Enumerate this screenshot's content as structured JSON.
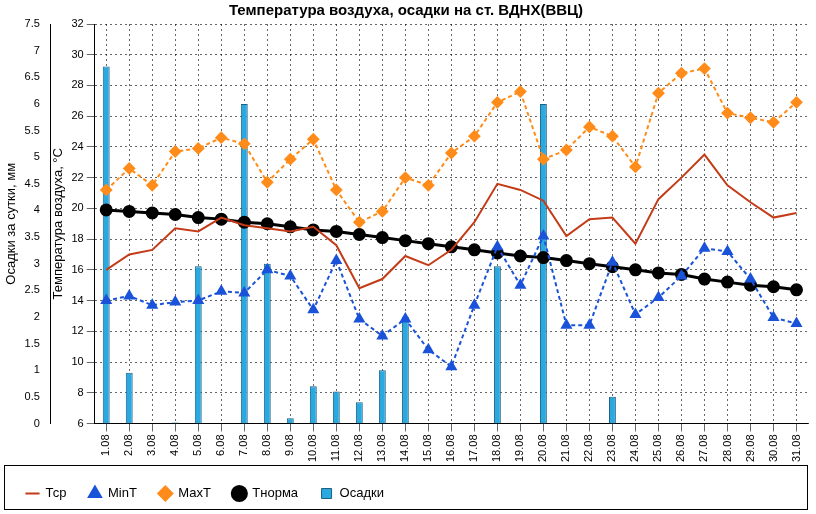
{
  "chart_data": {
    "type": "line",
    "title": "Температура воздуха, осадки на ст. ВДНХ(ВВЦ)",
    "y_label": "Температура воздуха, °C",
    "y2_label": "Осадки за сутки, мм",
    "categories": [
      "1.08",
      "2.08",
      "3.08",
      "4.08",
      "5.08",
      "6.08",
      "7.08",
      "8.08",
      "9.08",
      "10.08",
      "11.08",
      "12.08",
      "13.08",
      "14.08",
      "15.08",
      "16.08",
      "17.08",
      "18.08",
      "19.08",
      "20.08",
      "21.08",
      "22.08",
      "23.08",
      "24.08",
      "25.08",
      "26.08",
      "27.08",
      "28.08",
      "29.08",
      "30.08",
      "31.08"
    ],
    "ylim": [
      6,
      32
    ],
    "yticks": [
      6,
      8,
      10,
      12,
      14,
      16,
      18,
      20,
      22,
      24,
      26,
      28,
      30,
      32
    ],
    "y2lim": [
      0,
      7.5
    ],
    "y2ticks": [
      0,
      0.5,
      1,
      1.5,
      2,
      2.5,
      3,
      3.5,
      4,
      4.5,
      5,
      5.5,
      6,
      6.5,
      7,
      7.5
    ],
    "grid": true,
    "legend": "bottom",
    "series": [
      {
        "name": "Осадки",
        "type": "bar",
        "axis": "y2",
        "color": "#29a9e0",
        "values": [
          6.7,
          0.95,
          0,
          0.02,
          2.95,
          0,
          6.0,
          3.0,
          0.1,
          0.7,
          0.6,
          0.4,
          1.0,
          2.0,
          0,
          0,
          0,
          2.95,
          0,
          6.0,
          0,
          0,
          0.5,
          0,
          0,
          0,
          0,
          0,
          0,
          0,
          0
        ]
      },
      {
        "name": "Тср",
        "type": "line",
        "color": "#c33b17",
        "marker": "none",
        "line_style": "solid",
        "values": [
          16.0,
          17.0,
          17.3,
          18.7,
          18.5,
          19.4,
          18.9,
          18.7,
          18.5,
          18.8,
          17.6,
          14.8,
          15.4,
          16.9,
          16.3,
          17.3,
          19.1,
          21.6,
          21.2,
          20.5,
          18.2,
          19.3,
          19.4,
          17.7,
          20.6,
          22.0,
          23.5,
          21.5,
          20.4,
          19.4,
          19.7
        ]
      },
      {
        "name": "MinT",
        "type": "line",
        "color": "#1a53d9",
        "marker": "triangle",
        "line_style": "dashed",
        "values": [
          14.0,
          14.3,
          13.7,
          13.9,
          14.0,
          14.6,
          14.5,
          16.0,
          15.6,
          13.4,
          16.6,
          12.8,
          11.7,
          12.8,
          10.8,
          9.7,
          13.7,
          17.5,
          15.0,
          18.2,
          12.4,
          12.4,
          16.5,
          13.1,
          14.2,
          15.6,
          17.4,
          17.2,
          15.4,
          12.9,
          12.5
        ]
      },
      {
        "name": "MaxT",
        "type": "line",
        "color": "#ff8c1a",
        "marker": "diamond",
        "line_style": "dashed",
        "values": [
          21.2,
          22.6,
          21.5,
          23.7,
          23.9,
          24.6,
          24.2,
          21.7,
          23.2,
          24.5,
          21.2,
          19.1,
          19.8,
          22.0,
          21.5,
          23.6,
          24.7,
          26.9,
          27.6,
          23.2,
          23.8,
          25.3,
          24.7,
          22.7,
          27.5,
          28.8,
          29.1,
          26.2,
          25.9,
          25.6,
          26.9
        ]
      },
      {
        "name": "Тнорма",
        "type": "line",
        "color": "#000000",
        "marker": "circle",
        "line_style": "solid",
        "values": [
          19.9,
          19.8,
          19.7,
          19.6,
          19.4,
          19.3,
          19.1,
          19.0,
          18.8,
          18.6,
          18.5,
          18.3,
          18.1,
          17.9,
          17.7,
          17.5,
          17.3,
          17.1,
          16.9,
          16.8,
          16.6,
          16.4,
          16.2,
          16.0,
          15.8,
          15.7,
          15.4,
          15.2,
          15.0,
          14.9,
          14.7
        ]
      }
    ]
  }
}
